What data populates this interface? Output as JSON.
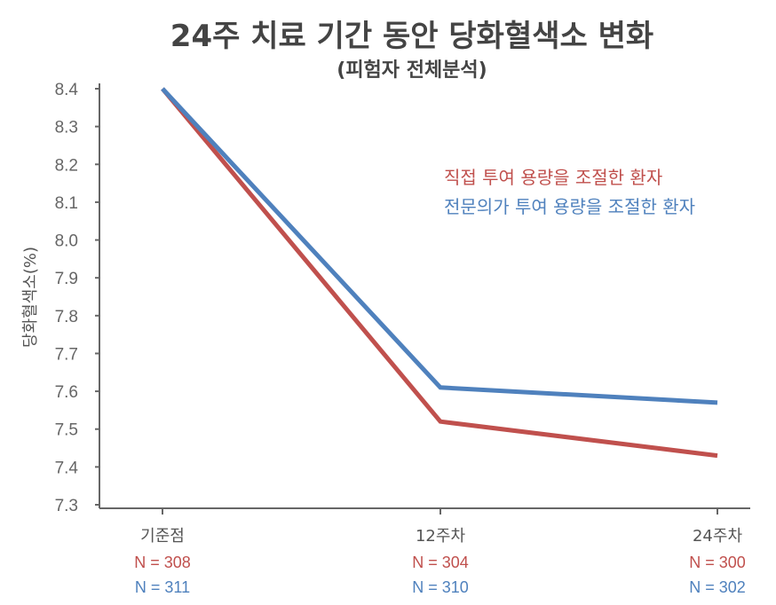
{
  "chart_data": {
    "type": "line",
    "title": "24주 치료 기간 동안 당화혈색소 변화",
    "subtitle": "(피험자 전체분석)",
    "ylabel": "당화혈색소(%)",
    "xlabel": "",
    "categories": [
      "기준점",
      "12주차",
      "24주차"
    ],
    "ylim": [
      7.3,
      8.4
    ],
    "yticks": [
      "7.3",
      "7.4",
      "7.5",
      "7.6",
      "7.7",
      "7.8",
      "7.9",
      "8.0",
      "8.1",
      "8.2",
      "8.3",
      "8.4"
    ],
    "grid": false,
    "legend_position": "upper-right",
    "series": [
      {
        "name": "직접 투여 용량을 조절한 환자",
        "color": "#c0504d",
        "values": [
          8.4,
          7.52,
          7.43
        ],
        "n_labels": [
          "N = 308",
          "N = 304",
          "N = 300"
        ]
      },
      {
        "name": "전문의가 투여 용량을 조절한 환자",
        "color": "#4f81bd",
        "values": [
          8.4,
          7.61,
          7.57
        ],
        "n_labels": [
          "N = 311",
          "N = 310",
          "N = 302"
        ]
      }
    ]
  }
}
